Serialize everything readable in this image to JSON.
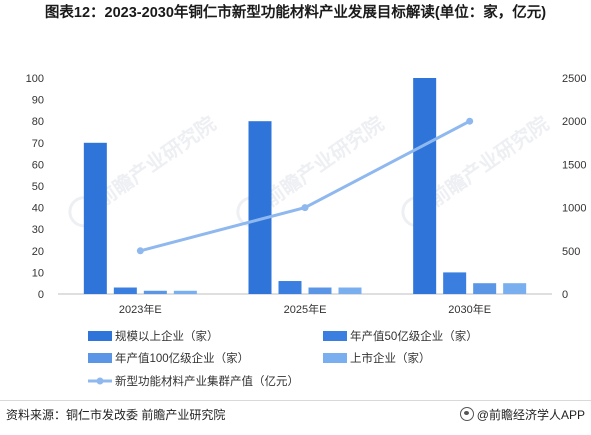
{
  "title": "图表12：2023-2030年铜仁市新型功能材料产业发展目标解读(单位：家，亿元)",
  "source": "资料来源：铜仁市发改委 前瞻产业研究院",
  "brand": "@前瞻经济学人APP",
  "watermark": "前瞻产业研究院",
  "colors": {
    "bar1": "#2f74d8",
    "bar2": "#3a7ee0",
    "bar3": "#5b95e6",
    "bar4": "#79aeef",
    "line": "#8fb8ef",
    "axis": "#bfbfbf",
    "tick": "#333333"
  },
  "chart_data": {
    "type": "bar",
    "categories": [
      "2023年E",
      "2025年E",
      "2030年E"
    ],
    "ylim": [
      0,
      100
    ],
    "y_ticks": [
      0,
      10,
      20,
      30,
      40,
      50,
      60,
      70,
      80,
      90,
      100
    ],
    "y2lim": [
      0,
      2500
    ],
    "y2_ticks": [
      0,
      500,
      1000,
      1500,
      2000,
      2500
    ],
    "grid": false,
    "legend_position": "bottom",
    "series": [
      {
        "name": "规模以上企业（家）",
        "type": "bar",
        "axis": "left",
        "values": [
          70,
          80,
          100
        ]
      },
      {
        "name": "年产值50亿级企业（家）",
        "type": "bar",
        "axis": "left",
        "values": [
          3,
          6,
          10
        ]
      },
      {
        "name": "年产值100亿级企业（家）",
        "type": "bar",
        "axis": "left",
        "values": [
          1.5,
          3,
          5
        ]
      },
      {
        "name": "上市企业（家）",
        "type": "bar",
        "axis": "left",
        "values": [
          1.5,
          3,
          5
        ]
      },
      {
        "name": "新型功能材料产业集群产值（亿元）",
        "type": "line",
        "axis": "right",
        "values": [
          500,
          1000,
          2000
        ]
      }
    ]
  }
}
